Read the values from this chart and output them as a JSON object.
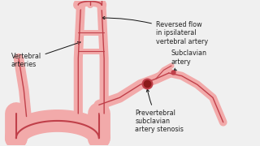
{
  "bg_color": "#f0f0f0",
  "artery_fill": "#f2aaaa",
  "artery_stroke": "#c0404a",
  "dark_red": "#8b1a1a",
  "text_color": "#222222",
  "arrow_color": "#111111",
  "labels": {
    "reversed_flow": "Reversed flow\nin ipsilateral\nvertebral artery",
    "vertebral": "Vertebral\narteries",
    "subclavian": "Subclavian\nartery",
    "stenosis": "Prevertebral\nsubclavian\nartery stenosis"
  }
}
